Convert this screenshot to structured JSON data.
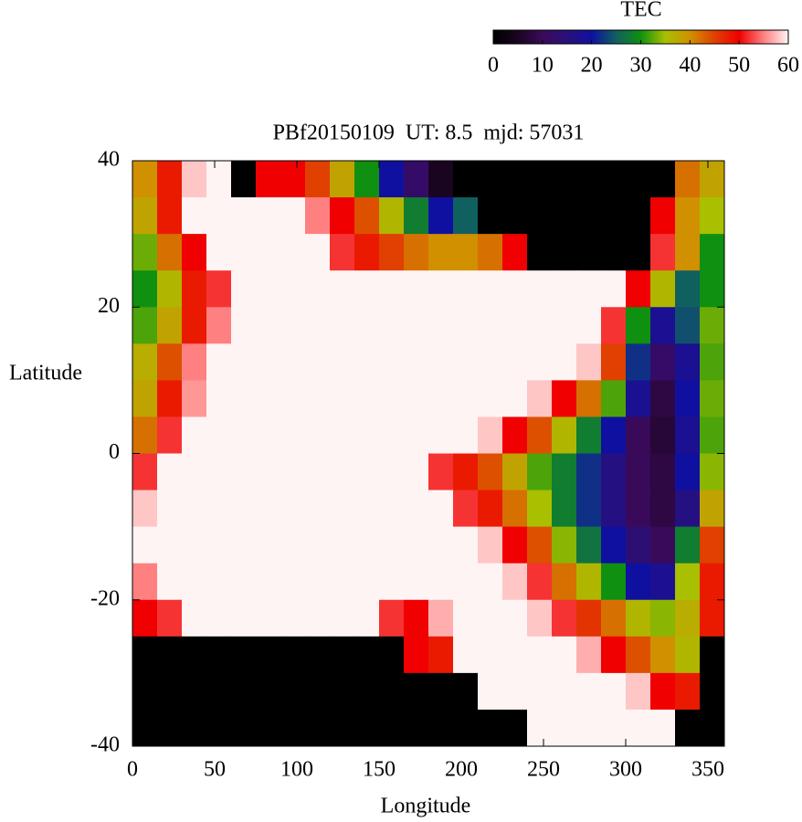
{
  "chart_data": {
    "type": "heatmap",
    "title": "PBf20150109  UT: 8.5  mjd: 57031",
    "x_label": "Longitude",
    "y_label": "Latitude",
    "xlim": [
      0,
      360
    ],
    "ylim": [
      -40,
      40
    ],
    "xticks": [
      0,
      50,
      100,
      150,
      200,
      250,
      300,
      350
    ],
    "yticks": [
      -40,
      -20,
      0,
      20,
      40
    ],
    "x": [
      7.5,
      22.5,
      37.5,
      52.5,
      67.5,
      82.5,
      97.5,
      112.5,
      127.5,
      142.5,
      157.5,
      172.5,
      187.5,
      202.5,
      217.5,
      232.5,
      247.5,
      262.5,
      277.5,
      292.5,
      307.5,
      322.5,
      337.5,
      352.5
    ],
    "y": [
      37.5,
      32.5,
      27.5,
      22.5,
      17.5,
      12.5,
      7.5,
      2.5,
      -2.5,
      -7.5,
      -12.5,
      -17.5,
      -22.5,
      -27.5,
      -32.5,
      -37.5
    ],
    "values": [
      [
        40,
        48,
        58,
        60,
        0,
        50,
        50,
        45,
        38,
        30,
        20,
        12,
        5,
        0,
        0,
        0,
        0,
        0,
        0,
        0,
        0,
        0,
        42,
        38
      ],
      [
        38,
        48,
        60,
        60,
        60,
        60,
        60,
        55,
        50,
        44,
        36,
        28,
        20,
        25,
        0,
        0,
        0,
        0,
        0,
        0,
        0,
        50,
        40,
        35
      ],
      [
        33,
        42,
        50,
        60,
        60,
        60,
        60,
        60,
        52,
        48,
        45,
        42,
        40,
        40,
        42,
        50,
        0,
        0,
        0,
        0,
        0,
        52,
        40,
        30
      ],
      [
        30,
        36,
        48,
        52,
        60,
        60,
        60,
        60,
        60,
        60,
        60,
        60,
        60,
        60,
        60,
        60,
        60,
        60,
        60,
        60,
        50,
        36,
        25,
        30
      ],
      [
        32,
        38,
        48,
        55,
        60,
        60,
        60,
        60,
        60,
        60,
        60,
        60,
        60,
        60,
        60,
        60,
        60,
        60,
        60,
        52,
        30,
        18,
        24,
        33
      ],
      [
        37,
        44,
        55,
        60,
        60,
        60,
        60,
        60,
        60,
        60,
        60,
        60,
        60,
        60,
        60,
        60,
        60,
        60,
        58,
        45,
        22,
        12,
        18,
        32
      ],
      [
        38,
        48,
        56,
        60,
        60,
        60,
        60,
        60,
        60,
        60,
        60,
        60,
        60,
        60,
        60,
        60,
        58,
        50,
        42,
        32,
        18,
        8,
        20,
        33
      ],
      [
        42,
        52,
        60,
        60,
        60,
        60,
        60,
        60,
        60,
        60,
        60,
        60,
        60,
        60,
        58,
        50,
        44,
        36,
        28,
        20,
        10,
        7,
        18,
        32
      ],
      [
        52,
        60,
        60,
        60,
        60,
        60,
        60,
        60,
        60,
        60,
        60,
        60,
        52,
        48,
        44,
        38,
        32,
        28,
        22,
        16,
        10,
        8,
        20,
        34
      ],
      [
        58,
        60,
        60,
        60,
        60,
        60,
        60,
        60,
        60,
        60,
        60,
        60,
        60,
        52,
        48,
        42,
        35,
        28,
        22,
        16,
        10,
        8,
        16,
        38
      ],
      [
        60,
        60,
        60,
        60,
        60,
        60,
        60,
        60,
        60,
        60,
        60,
        60,
        60,
        60,
        58,
        50,
        44,
        34,
        27,
        20,
        14,
        10,
        28,
        45
      ],
      [
        55,
        60,
        60,
        60,
        60,
        60,
        60,
        60,
        60,
        60,
        60,
        60,
        60,
        60,
        60,
        58,
        52,
        42,
        36,
        30,
        20,
        18,
        35,
        48
      ],
      [
        50,
        52,
        60,
        60,
        60,
        60,
        60,
        60,
        60,
        60,
        52,
        50,
        57,
        60,
        60,
        60,
        58,
        52,
        46,
        42,
        36,
        34,
        37,
        48
      ],
      [
        0,
        0,
        0,
        0,
        0,
        0,
        0,
        0,
        0,
        0,
        0,
        50,
        48,
        60,
        60,
        60,
        60,
        60,
        57,
        50,
        44,
        40,
        36,
        0
      ],
      [
        0,
        0,
        0,
        0,
        0,
        0,
        0,
        0,
        0,
        0,
        0,
        0,
        0,
        0,
        60,
        60,
        60,
        60,
        60,
        60,
        58,
        50,
        48,
        0
      ],
      [
        0,
        0,
        0,
        0,
        0,
        0,
        0,
        0,
        0,
        0,
        0,
        0,
        0,
        0,
        0,
        0,
        60,
        60,
        60,
        60,
        60,
        60,
        0,
        0
      ]
    ],
    "colorbar": {
      "label": "TEC",
      "lim": [
        0,
        60
      ],
      "ticks": [
        0,
        10,
        20,
        30,
        40,
        50,
        60
      ]
    },
    "colorscale": [
      "#000000",
      "#1a0520",
      "#3a0a5a",
      "#2a107a",
      "#1010a0",
      "#106060",
      "#109010",
      "#a8c000",
      "#d09000",
      "#e04000",
      "#f00000",
      "#ff8080",
      "#fff4f4"
    ]
  }
}
